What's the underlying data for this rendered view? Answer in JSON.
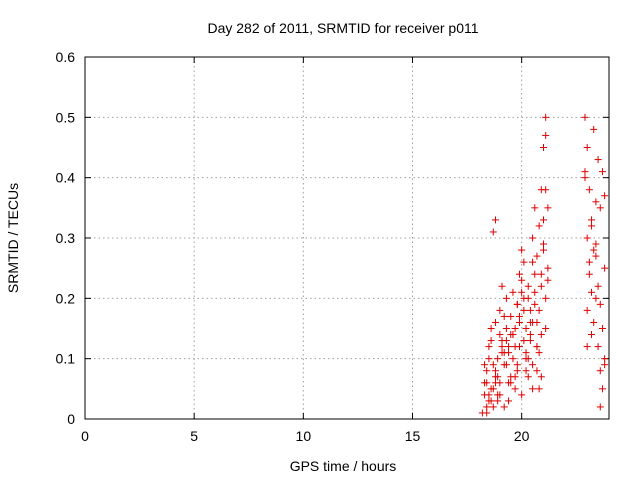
{
  "chart_data": {
    "type": "scatter",
    "title": "Day 282 of 2011, SRMTID for receiver p011",
    "xlabel": "GPS time / hours",
    "ylabel": "SRMTID / TECUs",
    "xlim": [
      0,
      24
    ],
    "ylim": [
      0,
      0.6
    ],
    "xticks": [
      "0",
      "5",
      "10",
      "15",
      "20"
    ],
    "yticks": [
      "0",
      "0.1",
      "0.2",
      "0.3",
      "0.4",
      "0.5",
      "0.6"
    ],
    "grid": true,
    "marker": "plus",
    "color": "#e00000",
    "series": [
      {
        "x": [
          18.2,
          18.3,
          18.3,
          18.4,
          18.4,
          18.5,
          18.5,
          18.6,
          18.6,
          18.7,
          18.7,
          18.8,
          18.8,
          18.8,
          18.9,
          18.9,
          19.0,
          19.0,
          19.1,
          19.1,
          19.2,
          19.2,
          19.3,
          19.3,
          19.4,
          19.4,
          19.5,
          19.5,
          19.6,
          19.6,
          19.7,
          19.7,
          19.8,
          19.8,
          19.9,
          19.9,
          20.0,
          20.0,
          20.1,
          20.1,
          20.2,
          20.2,
          20.3,
          20.3,
          20.4,
          20.4,
          20.5,
          20.5,
          20.6,
          20.6,
          20.7,
          20.7,
          20.8,
          20.8,
          20.9,
          20.9,
          21.0,
          21.0,
          21.1,
          21.1,
          21.2,
          21.2,
          18.4,
          18.6,
          18.8,
          19.0,
          19.2,
          19.4,
          19.6,
          19.8,
          20.0,
          20.2,
          20.4,
          20.6,
          20.8,
          21.0,
          18.5,
          18.7,
          18.9,
          19.1,
          19.3,
          19.5,
          19.7,
          19.9,
          20.1,
          20.3,
          20.5,
          20.7,
          20.9,
          21.1,
          18.3,
          18.5,
          18.7,
          18.9,
          19.1,
          19.3,
          19.5,
          19.7,
          19.9,
          20.1,
          20.3,
          20.5,
          20.7,
          20.9,
          21.1,
          21.2,
          21.1,
          21.0,
          20.9,
          20.8,
          20.7,
          20.6,
          20.5,
          20.4,
          20.2,
          20.0,
          19.8,
          19.6,
          19.4,
          19.2,
          19.0,
          18.8,
          18.6,
          18.4,
          22.9,
          22.9,
          23.0,
          23.0,
          23.1,
          23.1,
          23.2,
          23.2,
          23.3,
          23.3,
          23.4,
          23.4,
          23.5,
          23.5,
          23.6,
          23.6,
          23.7,
          23.7,
          23.8,
          23.8,
          22.9,
          23.0,
          23.1,
          23.2,
          23.3,
          23.4,
          23.5,
          23.6,
          23.7,
          23.8,
          23.0,
          23.2,
          23.4,
          23.6,
          23.8
        ],
        "y": [
          0.01,
          0.04,
          0.09,
          0.02,
          0.06,
          0.03,
          0.12,
          0.05,
          0.15,
          0.02,
          0.31,
          0.08,
          0.16,
          0.33,
          0.04,
          0.1,
          0.06,
          0.18,
          0.13,
          0.22,
          0.02,
          0.09,
          0.2,
          0.15,
          0.03,
          0.11,
          0.07,
          0.17,
          0.14,
          0.21,
          0.05,
          0.12,
          0.09,
          0.19,
          0.24,
          0.16,
          0.28,
          0.04,
          0.2,
          0.26,
          0.11,
          0.15,
          0.07,
          0.22,
          0.13,
          0.18,
          0.3,
          0.09,
          0.35,
          0.21,
          0.16,
          0.27,
          0.05,
          0.32,
          0.24,
          0.38,
          0.29,
          0.45,
          0.2,
          0.5,
          0.25,
          0.23,
          0.08,
          0.13,
          0.06,
          0.14,
          0.17,
          0.12,
          0.1,
          0.19,
          0.23,
          0.08,
          0.14,
          0.19,
          0.11,
          0.33,
          0.04,
          0.09,
          0.07,
          0.11,
          0.13,
          0.06,
          0.15,
          0.12,
          0.18,
          0.1,
          0.16,
          0.12,
          0.14,
          0.38,
          0.06,
          0.1,
          0.05,
          0.03,
          0.12,
          0.09,
          0.14,
          0.07,
          0.17,
          0.13,
          0.2,
          0.26,
          0.08,
          0.22,
          0.47,
          0.35,
          0.15,
          0.28,
          0.07,
          0.18,
          0.12,
          0.24,
          0.05,
          0.16,
          0.1,
          0.21,
          0.08,
          0.14,
          0.06,
          0.11,
          0.04,
          0.07,
          0.03,
          0.01,
          0.5,
          0.41,
          0.18,
          0.45,
          0.26,
          0.38,
          0.32,
          0.21,
          0.48,
          0.16,
          0.36,
          0.29,
          0.43,
          0.22,
          0.35,
          0.08,
          0.41,
          0.15,
          0.37,
          0.1,
          0.4,
          0.3,
          0.24,
          0.14,
          0.28,
          0.2,
          0.12,
          0.19,
          0.05,
          0.25,
          0.12,
          0.33,
          0.27,
          0.02,
          0.09
        ]
      }
    ]
  }
}
